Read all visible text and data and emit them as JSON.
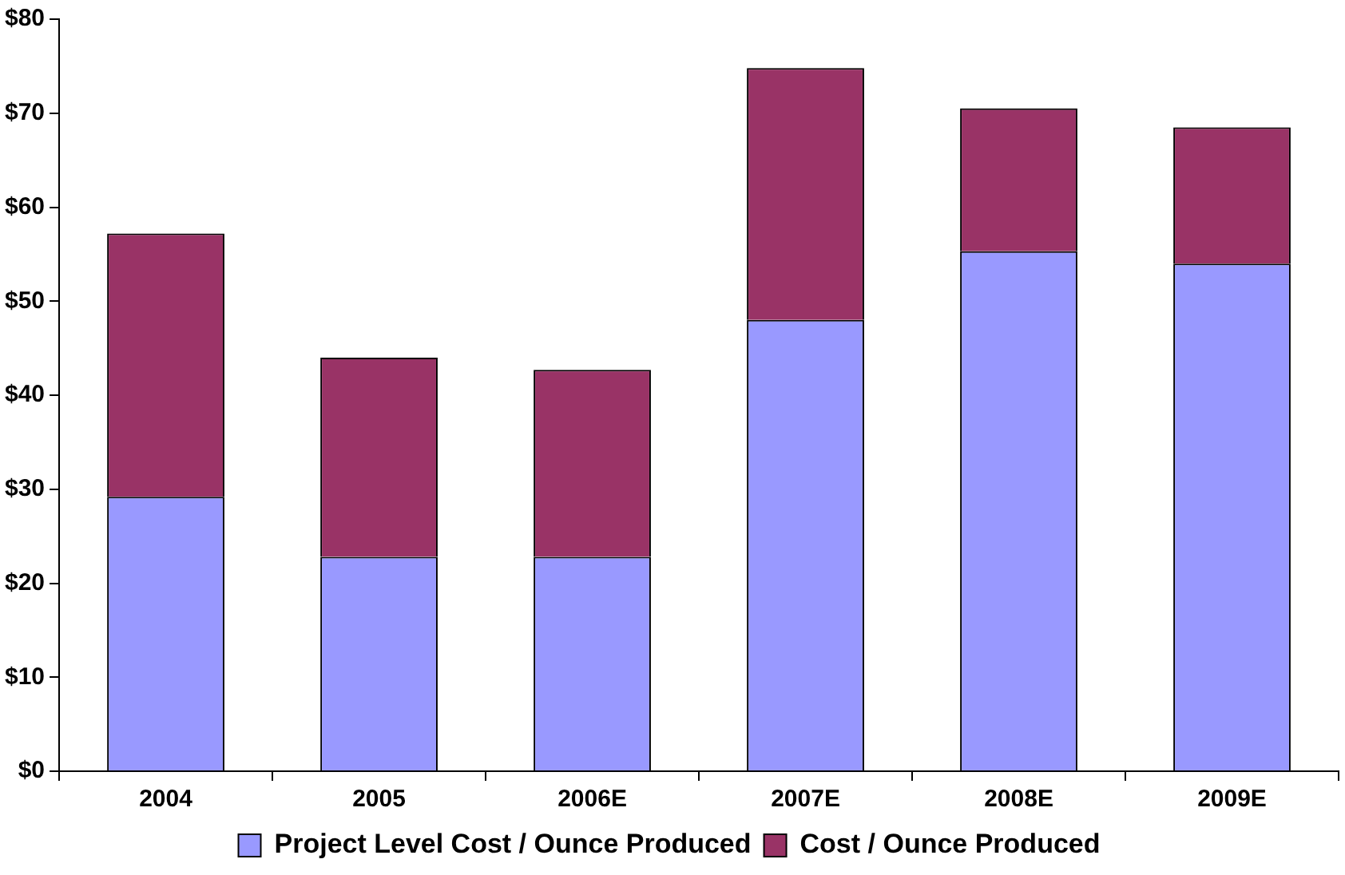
{
  "chart_data": {
    "type": "bar",
    "stacked": true,
    "categories": [
      "2004",
      "2005",
      "2006E",
      "2007E",
      "2008E",
      "2009E"
    ],
    "series": [
      {
        "name": "Project Level Cost / Ounce Produced",
        "color": "#9999ff",
        "values": [
          29.2,
          22.8,
          22.8,
          48,
          55.3,
          54
        ]
      },
      {
        "name": "Cost / Ounce Produced",
        "color": "#993366",
        "values": [
          28,
          21.2,
          19.9,
          26.8,
          15.2,
          14.5
        ]
      }
    ],
    "ylim": [
      0,
      80
    ],
    "yticks": [
      {
        "value": 0,
        "label": "$0"
      },
      {
        "value": 10,
        "label": "$10"
      },
      {
        "value": 20,
        "label": "$20"
      },
      {
        "value": 30,
        "label": "$30"
      },
      {
        "value": 40,
        "label": "$40"
      },
      {
        "value": 50,
        "label": "$50"
      },
      {
        "value": 60,
        "label": "$60"
      },
      {
        "value": 70,
        "label": "$70"
      },
      {
        "value": 80,
        "label": "$80"
      }
    ],
    "grid": false,
    "legend": "bottom"
  }
}
